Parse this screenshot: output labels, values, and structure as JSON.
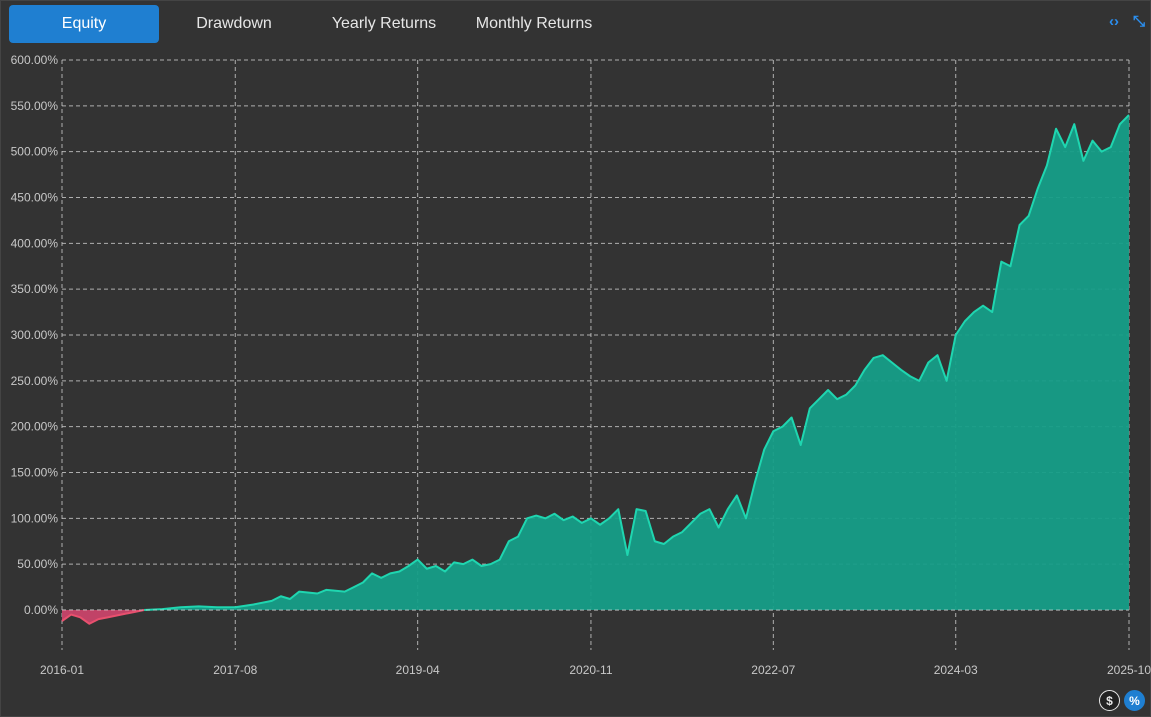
{
  "tabs": [
    {
      "label": "Equity",
      "active": true
    },
    {
      "label": "Drawdown",
      "active": false
    },
    {
      "label": "Yearly Returns",
      "active": false
    },
    {
      "label": "Monthly Returns",
      "active": false
    }
  ],
  "icons": {
    "expand": "code-brackets-icon",
    "collapse": "collapse-icon",
    "dollar": "dollar-icon",
    "percent": "percent-icon"
  },
  "labels": {
    "expand_glyph": "‹›",
    "collapse_glyph": "⤡",
    "dollar_glyph": "$",
    "percent_glyph": "%"
  },
  "colors": {
    "positive_line": "#1fd6b0",
    "positive_fill": "#169e88",
    "negative_line": "#e8506e",
    "negative_fill": "#c9456a",
    "accent": "#1f7fd1"
  },
  "chart_data": {
    "type": "area",
    "title": "",
    "xlabel": "",
    "ylabel": "",
    "ylim": [
      0,
      600
    ],
    "y_unit": "%",
    "y_ticks": [
      "600.00%",
      "550.00%",
      "500.00%",
      "450.00%",
      "400.00%",
      "350.00%",
      "300.00%",
      "250.00%",
      "200.00%",
      "150.00%",
      "100.00%",
      "50.00%",
      "0.00%"
    ],
    "x_ticks": [
      "2016-01",
      "2017-08",
      "2019-04",
      "2020-11",
      "2022-07",
      "2024-03",
      "2025-10"
    ],
    "grid": true,
    "series": [
      {
        "values": [
          [
            "2016-01",
            -12
          ],
          [
            "2016-02",
            -5
          ],
          [
            "2016-03",
            -8
          ],
          [
            "2016-04",
            -15
          ],
          [
            "2016-05",
            -10
          ],
          [
            "2016-06",
            -8
          ],
          [
            "2016-07",
            -6
          ],
          [
            "2016-08",
            -4
          ],
          [
            "2016-09",
            -2
          ],
          [
            "2016-10",
            0
          ],
          [
            "2016-12",
            1
          ],
          [
            "2017-02",
            3
          ],
          [
            "2017-04",
            4
          ],
          [
            "2017-06",
            3
          ],
          [
            "2017-08",
            3
          ],
          [
            "2017-10",
            6
          ],
          [
            "2017-12",
            10
          ],
          [
            "2018-01",
            15
          ],
          [
            "2018-02",
            12
          ],
          [
            "2018-03",
            20
          ],
          [
            "2018-05",
            18
          ],
          [
            "2018-06",
            22
          ],
          [
            "2018-08",
            20
          ],
          [
            "2018-09",
            25
          ],
          [
            "2018-10",
            30
          ],
          [
            "2018-11",
            40
          ],
          [
            "2018-12",
            35
          ],
          [
            "2019-01",
            40
          ],
          [
            "2019-02",
            42
          ],
          [
            "2019-03",
            48
          ],
          [
            "2019-04",
            55
          ],
          [
            "2019-05",
            45
          ],
          [
            "2019-06",
            48
          ],
          [
            "2019-07",
            42
          ],
          [
            "2019-08",
            52
          ],
          [
            "2019-09",
            50
          ],
          [
            "2019-10",
            55
          ],
          [
            "2019-11",
            48
          ],
          [
            "2019-12",
            50
          ],
          [
            "2020-01",
            55
          ],
          [
            "2020-02",
            75
          ],
          [
            "2020-03",
            80
          ],
          [
            "2020-04",
            100
          ],
          [
            "2020-05",
            103
          ],
          [
            "2020-06",
            100
          ],
          [
            "2020-07",
            105
          ],
          [
            "2020-08",
            98
          ],
          [
            "2020-09",
            102
          ],
          [
            "2020-10",
            95
          ],
          [
            "2020-11",
            100
          ],
          [
            "2020-12",
            93
          ],
          [
            "2021-01",
            100
          ],
          [
            "2021-02",
            110
          ],
          [
            "2021-03",
            60
          ],
          [
            "2021-04",
            110
          ],
          [
            "2021-05",
            108
          ],
          [
            "2021-06",
            75
          ],
          [
            "2021-07",
            72
          ],
          [
            "2021-08",
            80
          ],
          [
            "2021-09",
            85
          ],
          [
            "2021-10",
            95
          ],
          [
            "2021-11",
            105
          ],
          [
            "2021-12",
            110
          ],
          [
            "2022-01",
            90
          ],
          [
            "2022-02",
            110
          ],
          [
            "2022-03",
            125
          ],
          [
            "2022-04",
            100
          ],
          [
            "2022-05",
            140
          ],
          [
            "2022-06",
            175
          ],
          [
            "2022-07",
            195
          ],
          [
            "2022-08",
            200
          ],
          [
            "2022-09",
            210
          ],
          [
            "2022-10",
            180
          ],
          [
            "2022-11",
            220
          ],
          [
            "2022-12",
            230
          ],
          [
            "2023-01",
            240
          ],
          [
            "2023-02",
            230
          ],
          [
            "2023-03",
            235
          ],
          [
            "2023-04",
            245
          ],
          [
            "2023-05",
            262
          ],
          [
            "2023-06",
            275
          ],
          [
            "2023-07",
            278
          ],
          [
            "2023-08",
            270
          ],
          [
            "2023-09",
            262
          ],
          [
            "2023-10",
            255
          ],
          [
            "2023-11",
            250
          ],
          [
            "2023-12",
            270
          ],
          [
            "2024-01",
            278
          ],
          [
            "2024-02",
            250
          ],
          [
            "2024-03",
            300
          ],
          [
            "2024-04",
            315
          ],
          [
            "2024-05",
            325
          ],
          [
            "2024-06",
            332
          ],
          [
            "2024-07",
            325
          ],
          [
            "2024-08",
            380
          ],
          [
            "2024-09",
            375
          ],
          [
            "2024-10",
            420
          ],
          [
            "2024-11",
            430
          ],
          [
            "2024-12",
            460
          ],
          [
            "2025-01",
            485
          ],
          [
            "2025-02",
            525
          ],
          [
            "2025-03",
            505
          ],
          [
            "2025-04",
            530
          ],
          [
            "2025-05",
            490
          ],
          [
            "2025-06",
            512
          ],
          [
            "2025-07",
            500
          ],
          [
            "2025-08",
            505
          ],
          [
            "2025-09",
            530
          ],
          [
            "2025-10",
            540
          ]
        ]
      }
    ]
  }
}
